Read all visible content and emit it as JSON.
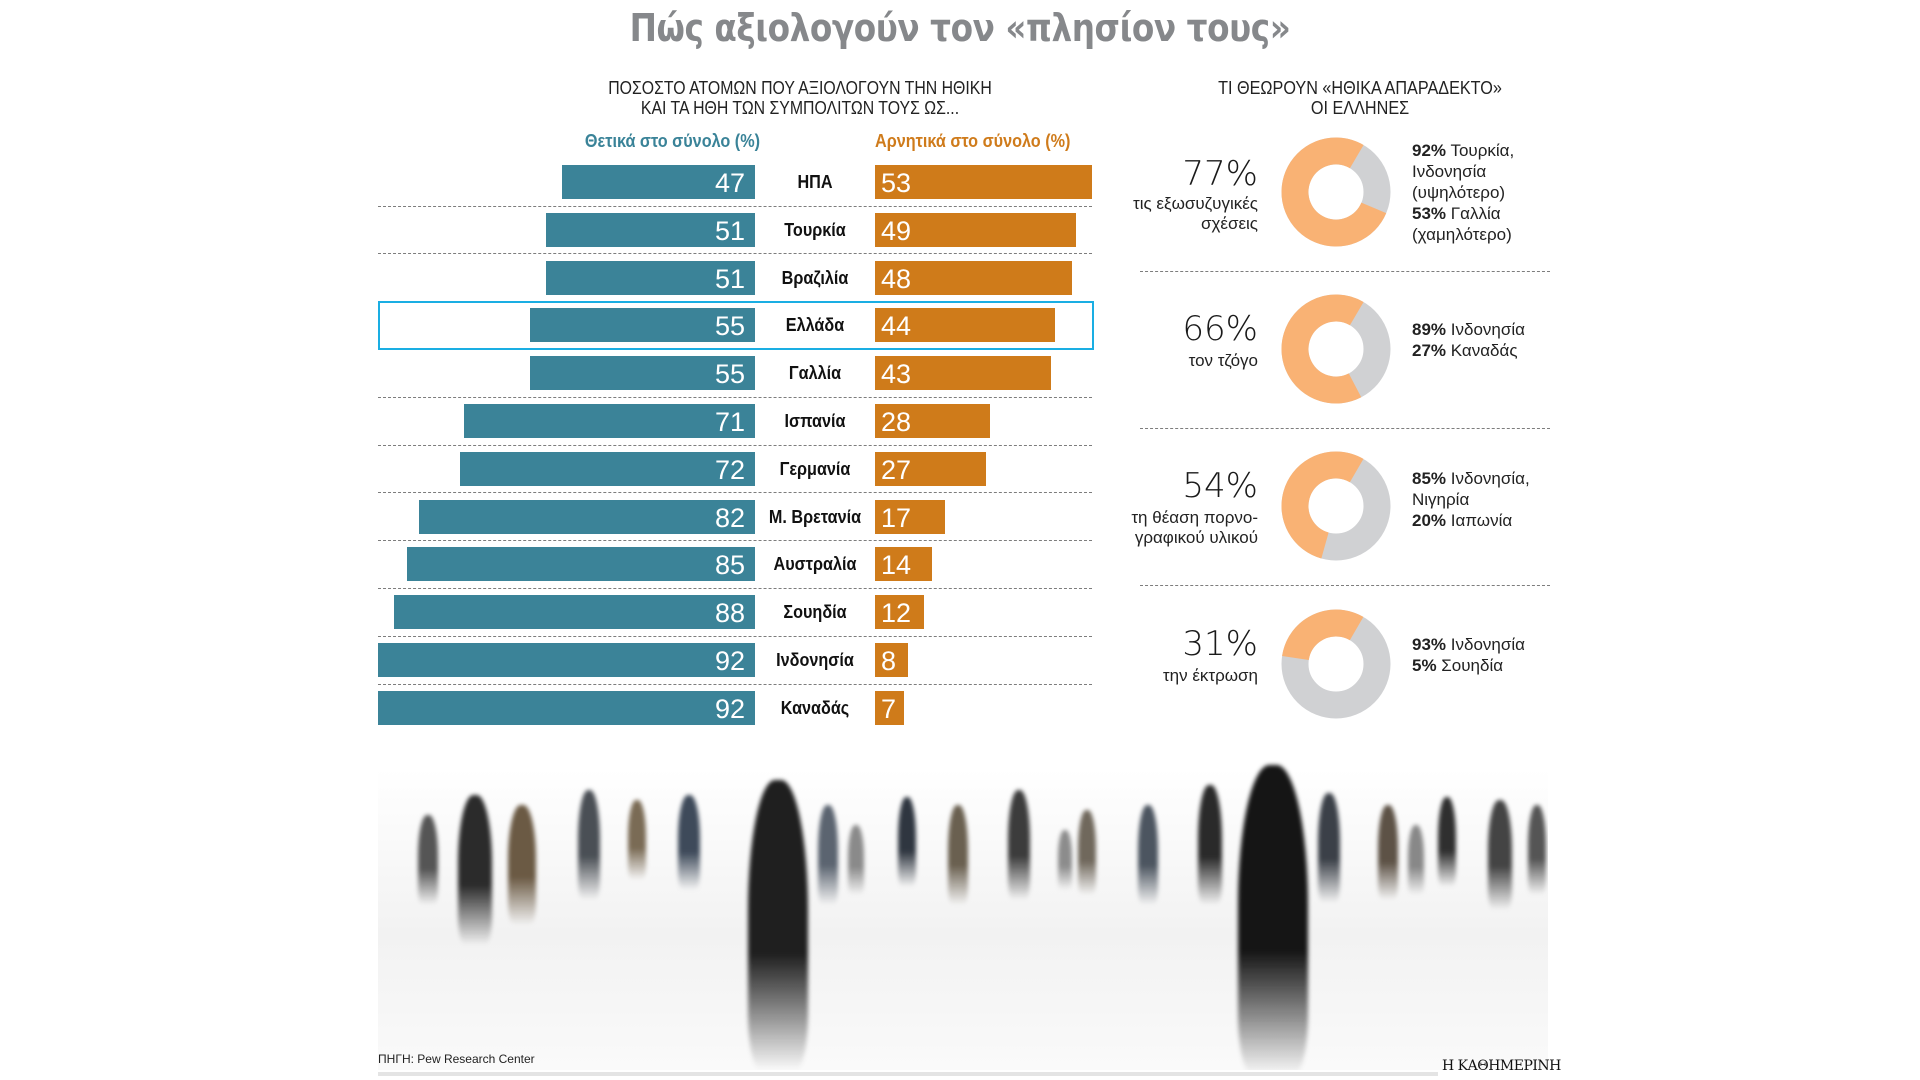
{
  "title": "Πώς αξιολογούν τον «πλησίον τους»",
  "left_panel": {
    "subtitle_line1": "ΠΟΣΟΣΤΟ ΑΤΟΜΩΝ ΠΟΥ ΑΞΙΟΛΟΓΟΥΝ ΤΗΝ ΗΘΙΚΗ",
    "subtitle_line2": "ΚΑΙ ΤΑ ΗΘΗ ΤΩΝ ΣΥΜΠΟΛΙΤΩΝ ΤΟΥΣ ΩΣ...",
    "legend_positive": "Θετικά στο σύνολο (%)",
    "legend_negative": "Αρνητικά στο σύνολο (%)",
    "highlighted_country": "Ελλάδα"
  },
  "right_panel": {
    "subtitle_line1": "ΤΙ ΘΕΩΡΟΥΝ «ΗΘΙΚΑ ΑΠΑΡΑΔΕΚΤΟ»",
    "subtitle_line2": "ΟΙ ΕΛΛΗΝΕΣ",
    "items": [
      {
        "pct_text": "77%",
        "label": "τις εξωσυζυγικές σχέσεις",
        "value": 77,
        "notes": [
          {
            "bold": "92%",
            "text": " Τουρκία, Ινδονησία (υψηλότερο)"
          },
          {
            "bold": "53%",
            "text": " Γαλλία (χαμηλότερο)"
          }
        ]
      },
      {
        "pct_text": "66%",
        "label": "τον τζόγο",
        "value": 66,
        "notes": [
          {
            "bold": "89%",
            "text": " Ινδονησία"
          },
          {
            "bold": "27%",
            "text": " Καναδάς"
          }
        ]
      },
      {
        "pct_text": "54%",
        "label": "τη θέαση πορνο-γραφικού υλικού",
        "value": 54,
        "notes": [
          {
            "bold": "85%",
            "text": " Ινδονησία, Νιγηρία"
          },
          {
            "bold": "20%",
            "text": " Ιαπωνία"
          }
        ]
      },
      {
        "pct_text": "31%",
        "label": "την έκτρωση",
        "value": 31,
        "notes": [
          {
            "bold": "93%",
            "text": " Ινδονησία"
          },
          {
            "bold": "5%",
            "text": " Σουηδία"
          }
        ]
      }
    ]
  },
  "colors": {
    "positive": "#3b8398",
    "negative": "#cf7b1a",
    "donut_fill": "#f9b274",
    "donut_rest": "#d0d1d3",
    "highlight": "#1aaee3",
    "title": "#86888b"
  },
  "footer": {
    "source": "ΠΗΓΗ: Pew Research Center",
    "brand": "Η ΚΑΘΗΜΕΡΙΝΗ"
  },
  "chart_data": [
    {
      "type": "bar",
      "title": "ΠΟΣΟΣΤΟ ΑΤΟΜΩΝ ΠΟΥ ΑΞΙΟΛΟΓΟΥΝ ΤΗΝ ΗΘΙΚΗ ΚΑΙ ΤΑ ΗΘΗ ΤΩΝ ΣΥΜΠΟΛΙΤΩΝ ΤΟΥΣ ΩΣ...",
      "orientation": "horizontal-diverging",
      "categories": [
        "ΗΠΑ",
        "Τουρκία",
        "Βραζιλία",
        "Ελλάδα",
        "Γαλλία",
        "Ισπανία",
        "Γερμανία",
        "Μ. Βρετανία",
        "Αυστραλία",
        "Σουηδία",
        "Ινδονησία",
        "Καναδάς"
      ],
      "series": [
        {
          "name": "Θετικά στο σύνολο (%)",
          "values": [
            47,
            51,
            51,
            55,
            55,
            71,
            72,
            82,
            85,
            88,
            92,
            92
          ]
        },
        {
          "name": "Αρνητικά στο σύνολο (%)",
          "values": [
            53,
            49,
            48,
            44,
            43,
            28,
            27,
            17,
            14,
            12,
            8,
            7
          ]
        }
      ],
      "xlim": [
        0,
        100
      ],
      "grid": false,
      "legend": "top"
    },
    {
      "type": "pie",
      "title": "ΤΙ ΘΕΩΡΟΥΝ «ΗΘΙΚΑ ΑΠΑΡΑΔΕΚΤΟ» ΟΙ ΕΛΛΗΝΕΣ",
      "categories": [
        "τις εξωσυζυγικές σχέσεις",
        "τον τζόγο",
        "τη θέαση πορνογραφικού υλικού",
        "την έκτρωση"
      ],
      "values": [
        77,
        66,
        54,
        31
      ]
    }
  ]
}
